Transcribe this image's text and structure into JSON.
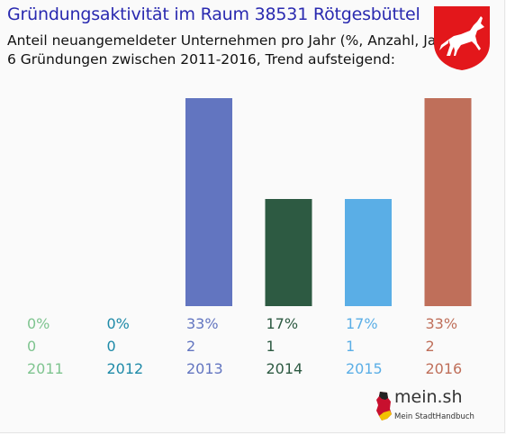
{
  "header": {
    "title": "Gründungsaktivität im Raum 38531 Rötgesbüttel",
    "subtitle_line1": "Anteil neuangemeldeter Unternehmen pro Jahr (%, Anzahl, Jahr)",
    "subtitle_line2": "6 Gründungen zwischen 2011-2016, Trend aufsteigend:"
  },
  "crest": {
    "icon": "lower-saxony-horse-crest-icon",
    "color": "#e3171b"
  },
  "chart_data": {
    "type": "bar",
    "categories": [
      "2011",
      "2012",
      "2013",
      "2014",
      "2015",
      "2016"
    ],
    "values": [
      0,
      0,
      33,
      17,
      17,
      33
    ],
    "percent_labels": [
      "0%",
      "0%",
      "33%",
      "17%",
      "17%",
      "33%"
    ],
    "count_labels": [
      "0",
      "0",
      "2",
      "1",
      "1",
      "2"
    ],
    "colors": [
      "#7ec48f",
      "#1e8aa8",
      "#6275c0",
      "#2d5a42",
      "#5aaee6",
      "#bf6f5a"
    ],
    "ylim": [
      0,
      33
    ],
    "grid": false,
    "legend": "none"
  },
  "brand": {
    "name": "mein.sh",
    "tagline": "Mein StadtHandbuch",
    "icon": "germany-map-icon"
  }
}
